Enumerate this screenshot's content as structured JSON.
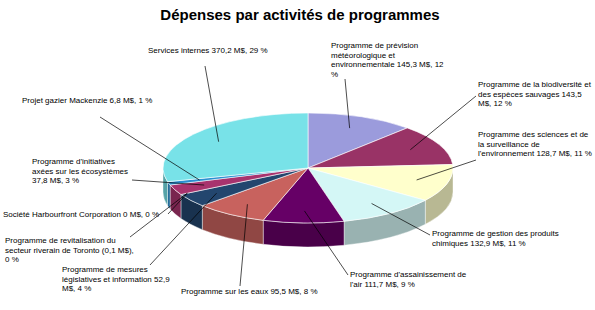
{
  "chart_data": {
    "type": "pie",
    "title": "Dépenses par activités de programmes",
    "categories": [
      "Programme de prévision météorologique et environnementale",
      "Programme de la biodiversité et des espèces sauvages",
      "Programme des sciences et de la surveillance de l'environnement",
      "Programme de gestion des produits chimiques",
      "Programme d'assainissement de l'air",
      "Programme sur les eaux",
      "Programme de mesures législatives et information",
      "Programme de revitalisation du secteur riverain de Toronto",
      "Société Harbourfront Corporation",
      "Programme d'initiatives axées sur les écosystèmes",
      "Projet gazier Mackenzie",
      "Services internes"
    ],
    "values": [
      12,
      12,
      11,
      11,
      9,
      8,
      4,
      0,
      0,
      3,
      1,
      29
    ],
    "value_labels": [
      "12 %",
      "12 %",
      "11 %",
      "11 %",
      "9 %",
      "8 %",
      "4 %",
      "0 %",
      "0 %",
      "3 %",
      "1 %",
      "29 %"
    ],
    "amount_labels": [
      "145,3 M$,",
      "143,5 M$,",
      "128,7 M$,",
      "132,9 M$,",
      "111,7 M$,",
      "95,5 M$,",
      "52,9 M$,",
      "(0,1 M$),",
      "0 M$,",
      "37,8 M$,",
      "6,8 M$,",
      "370,2 M$,"
    ],
    "colors": [
      "#9b9bdc",
      "#993366",
      "#ffffcc",
      "#d4f7f6",
      "#660066",
      "#c8625e",
      "#23466e",
      "#999999",
      "#bbbbbb",
      "#a8336e",
      "#2a8fd0",
      "#78e2e8"
    ],
    "data_labels": true
  }
}
